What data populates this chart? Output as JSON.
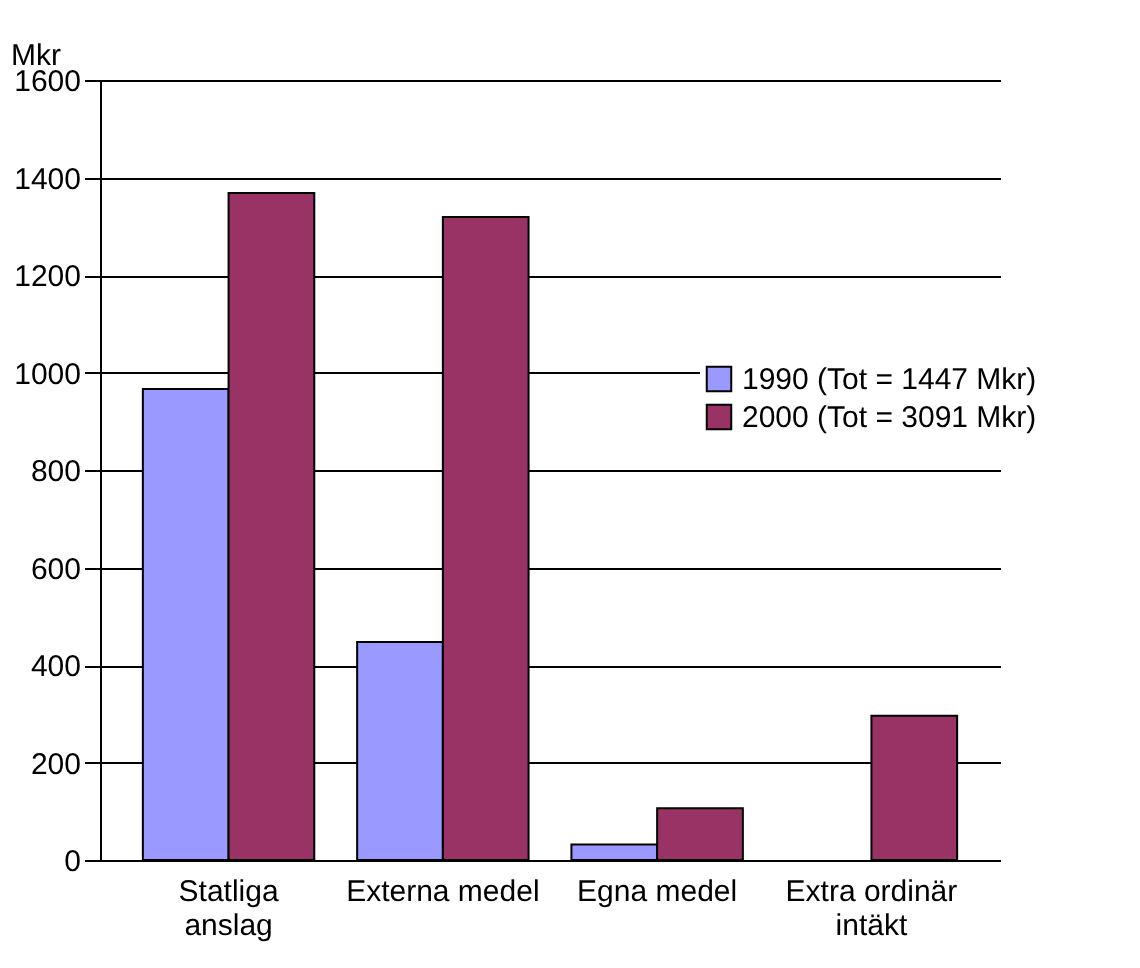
{
  "chart_data": {
    "type": "bar",
    "ylabel": "Mkr",
    "categories": [
      "Statliga anslag",
      "Externa medel",
      "Egna medel",
      "Extra ordinär intäkt"
    ],
    "series": [
      {
        "name": "1990 (Tot = 1447 Mkr)",
        "color": "#9999ff",
        "values": [
          966,
          447,
          32,
          null
        ]
      },
      {
        "name": "2000 (Tot = 3091 Mkr)",
        "color": "#993366",
        "values": [
          1368,
          1319,
          106,
          296
        ]
      }
    ],
    "ylim": [
      0,
      1600
    ],
    "yticks": [
      0,
      200,
      400,
      600,
      800,
      1000,
      1200,
      1400,
      1600
    ],
    "grid": "y",
    "legend": "right"
  }
}
